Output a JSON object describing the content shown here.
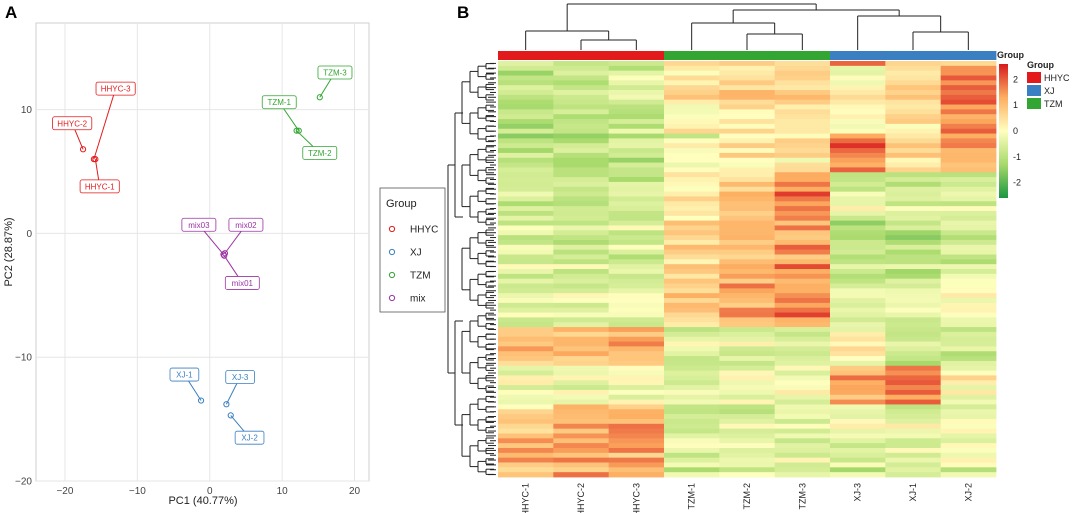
{
  "panels": {
    "a_label": "A",
    "b_label": "B"
  },
  "colors": {
    "HHYC": "#e31a1c",
    "XJ": "#3a7fc1",
    "TZM": "#33a532",
    "mix": "#9b33a3",
    "grid": "#e6e6e6",
    "heat_low": "#1a9641",
    "heat_mid": "#ffffbf",
    "heat_high": "#d7191c"
  },
  "chart_data": [
    {
      "type": "scatter",
      "title": "",
      "xlabel": "PC1 (40.77%)",
      "ylabel": "PC2 (28.87%)",
      "xlim": [
        -24,
        22
      ],
      "ylim": [
        -20,
        17
      ],
      "xticks": [
        -20,
        -10,
        0,
        10,
        20
      ],
      "yticks": [
        -20,
        -10,
        0,
        10
      ],
      "legend": {
        "title": "Group",
        "entries": [
          "HHYC",
          "XJ",
          "TZM",
          "mix"
        ]
      },
      "series": [
        {
          "name": "HHYC",
          "points": [
            {
              "label": "HHYC-3",
              "x": -16.0,
              "y": 6.0,
              "lx": -13.0,
              "ly": 11.7
            },
            {
              "label": "HHYC-2",
              "x": -17.5,
              "y": 6.8,
              "lx": -19.0,
              "ly": 8.9
            },
            {
              "label": "HHYC-1",
              "x": -15.8,
              "y": 6.0,
              "lx": -15.2,
              "ly": 3.8
            }
          ]
        },
        {
          "name": "TZM",
          "points": [
            {
              "label": "TZM-3",
              "x": 15.2,
              "y": 11.0,
              "lx": 17.3,
              "ly": 13.0
            },
            {
              "label": "TZM-1",
              "x": 12.3,
              "y": 8.3,
              "lx": 9.6,
              "ly": 10.6
            },
            {
              "label": "TZM-2",
              "x": 12.0,
              "y": 8.3,
              "lx": 15.2,
              "ly": 6.5
            }
          ]
        },
        {
          "name": "mix",
          "points": [
            {
              "label": "mix03",
              "x": 1.9,
              "y": -1.7,
              "lx": -1.5,
              "ly": 0.7
            },
            {
              "label": "mix02",
              "x": 2.1,
              "y": -1.6,
              "lx": 5.0,
              "ly": 0.7
            },
            {
              "label": "mix01",
              "x": 2.0,
              "y": -1.8,
              "lx": 4.5,
              "ly": -4.0
            }
          ]
        },
        {
          "name": "XJ",
          "points": [
            {
              "label": "XJ-1",
              "x": -1.2,
              "y": -13.5,
              "lx": -3.5,
              "ly": -11.4
            },
            {
              "label": "XJ-3",
              "x": 2.3,
              "y": -13.8,
              "lx": 4.2,
              "ly": -11.6
            },
            {
              "label": "XJ-2",
              "x": 2.9,
              "y": -14.7,
              "lx": 5.5,
              "ly": -16.5
            }
          ]
        }
      ]
    },
    {
      "type": "heatmap",
      "title": "",
      "columns": [
        "HHYC-1",
        "HHYC-2",
        "HHYC-3",
        "TZM-1",
        "TZM-2",
        "TZM-3",
        "XJ-3",
        "XJ-1",
        "XJ-2"
      ],
      "column_groups": [
        "HHYC",
        "HHYC",
        "HHYC",
        "TZM",
        "TZM",
        "TZM",
        "XJ",
        "XJ",
        "XJ"
      ],
      "annotation_label": "Group",
      "legend": {
        "title": "Group",
        "entries": [
          "HHYC",
          "XJ",
          "TZM"
        ]
      },
      "colorbar_ticks": [
        2,
        1,
        0,
        -1,
        -2
      ],
      "value_range": [
        -2.6,
        2.6
      ],
      "row_blocks": [
        {
          "rows": 1,
          "values": [
            -0.5,
            -0.5,
            -0.5,
            0.7,
            0.8,
            0.9,
            1.6,
            0.6,
            0.7
          ]
        },
        {
          "rows": 14,
          "values": [
            -0.8,
            -0.7,
            -0.6,
            0.5,
            0.6,
            0.6,
            0.1,
            0.6,
            1.7
          ]
        },
        {
          "rows": 8,
          "values": [
            -0.9,
            -0.9,
            -0.8,
            -0.2,
            0.2,
            0.4,
            1.7,
            0.6,
            1.2
          ]
        },
        {
          "rows": 10,
          "values": [
            -0.6,
            -0.7,
            -0.6,
            0.4,
            0.9,
            1.7,
            -0.4,
            -0.6,
            -0.3
          ]
        },
        {
          "rows": 12,
          "values": [
            -0.5,
            -0.6,
            -0.5,
            0.9,
            1.1,
            1.5,
            -0.8,
            -0.9,
            -0.5
          ]
        },
        {
          "rows": 10,
          "values": [
            -0.4,
            -0.5,
            -0.4,
            0.8,
            1.3,
            1.6,
            -0.3,
            -0.5,
            -0.2
          ]
        },
        {
          "rows": 8,
          "values": [
            1.0,
            1.2,
            1.3,
            -0.6,
            -0.5,
            -0.4,
            0.2,
            -0.9,
            -0.7
          ]
        },
        {
          "rows": 8,
          "values": [
            -0.2,
            -0.3,
            -0.2,
            -0.4,
            -0.2,
            -0.2,
            1.3,
            1.6,
            0.1
          ]
        },
        {
          "rows": 6,
          "values": [
            0.7,
            1.2,
            1.4,
            -0.6,
            -0.5,
            -0.4,
            -0.2,
            -0.3,
            -0.2
          ]
        },
        {
          "rows": 9,
          "values": [
            1.1,
            1.3,
            1.3,
            -0.5,
            -0.5,
            -0.5,
            -0.6,
            -0.5,
            -0.4
          ]
        }
      ]
    }
  ]
}
